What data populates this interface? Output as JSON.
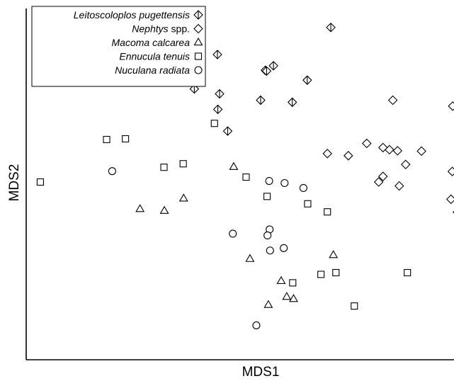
{
  "chart_data": {
    "type": "scatter",
    "title": "",
    "xlabel": "MDS1",
    "ylabel": "MDS2",
    "xlim": [
      0,
      100
    ],
    "ylim": [
      0,
      100
    ],
    "grid": false,
    "legend_position": "top-left",
    "series": [
      {
        "name": "Leitoscoloplos pugettensis",
        "name_suffix": "",
        "marker": "diamond-plus",
        "x": [
          71.2,
          55.9,
          57.8,
          56.2,
          44.7,
          45.2,
          65.7,
          44.8,
          39.3,
          54.8,
          47.1,
          62.2
        ],
        "y": [
          94.6,
          82.4,
          83.7,
          82.2,
          86.9,
          75.7,
          79.6,
          71.3,
          77.1,
          73.9,
          65.1,
          73.3
        ]
      },
      {
        "name": "Nephtys",
        "name_suffix": " spp.",
        "marker": "diamond",
        "x": [
          85.7,
          99.7,
          79.6,
          75.3,
          70.4,
          84.9,
          83.4,
          86.8,
          88.7,
          92.4,
          87.2,
          99.6,
          82.4,
          83.4,
          99.3,
          100.8
        ],
        "y": [
          73.9,
          72.2,
          61.6,
          58.1,
          58.7,
          59.8,
          60.4,
          59.5,
          55.6,
          59.4,
          49.5,
          53.6,
          50.6,
          52.2,
          45.7,
          42.0
        ]
      },
      {
        "name": "Macoma calcarea",
        "name_suffix": "",
        "marker": "triangle",
        "x": [
          48.5,
          26.6,
          32.3,
          36.8,
          52.3,
          71.8,
          59.6,
          60.9,
          56.6,
          62.5
        ],
        "y": [
          54.9,
          42.9,
          42.4,
          45.9,
          28.7,
          29.8,
          22.4,
          17.9,
          15.6,
          17.3
        ]
      },
      {
        "name": "Ennucula tenuis",
        "name_suffix": "",
        "marker": "square",
        "x": [
          23.2,
          44.0,
          18.8,
          3.3,
          32.2,
          36.7,
          51.4,
          56.3,
          65.8,
          70.4,
          68.9,
          72.4,
          62.3,
          89.1,
          76.7
        ],
        "y": [
          62.9,
          67.3,
          62.7,
          50.6,
          54.8,
          55.8,
          52.0,
          46.5,
          44.4,
          42.1,
          24.3,
          24.8,
          21.9,
          24.8,
          15.3
        ]
      },
      {
        "name": "Nuculana radiata",
        "name_suffix": "",
        "marker": "circle",
        "x": [
          20.1,
          56.8,
          60.4,
          64.8,
          48.3,
          56.9,
          56.4,
          57.0,
          60.2,
          53.8
        ],
        "y": [
          53.7,
          50.9,
          50.3,
          48.9,
          35.9,
          37.1,
          35.4,
          31.1,
          31.8,
          9.8
        ]
      }
    ]
  }
}
